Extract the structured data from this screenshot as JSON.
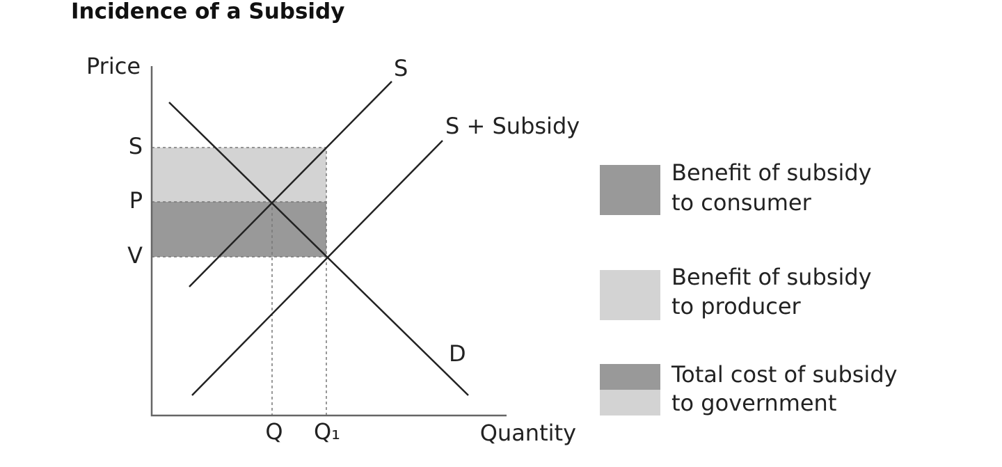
{
  "title": "Incidence of a Subsidy",
  "axes": {
    "y_label": "Price",
    "x_label": "Quantity"
  },
  "price_labels": [
    "S",
    "P",
    "V"
  ],
  "quantity_labels": [
    "Q",
    "Q₁"
  ],
  "curves": {
    "supply": "S",
    "supply_subsidy": "S + Subsidy",
    "demand": "D"
  },
  "legend": [
    {
      "lines": [
        "Benefit of subsidy",
        "to consumer"
      ]
    },
    {
      "lines": [
        "Benefit of subsidy",
        "to producer"
      ]
    },
    {
      "lines": [
        "Total cost of subsidy",
        "to government"
      ]
    }
  ]
}
